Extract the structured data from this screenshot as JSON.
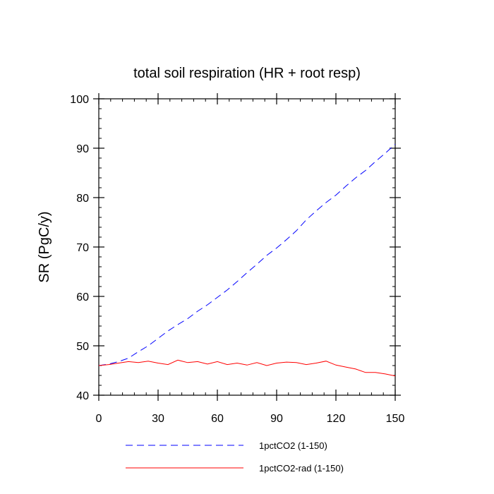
{
  "chart_data": {
    "type": "line",
    "title": "total soil respiration (HR + root resp)",
    "ylabel": "SR  (PgC/y)",
    "xlabel": "",
    "xlim": [
      0,
      150
    ],
    "ylim": [
      40,
      100
    ],
    "xticks": [
      0,
      30,
      60,
      90,
      120,
      150
    ],
    "xtick_labels": [
      "0",
      "30",
      "60",
      "90",
      "120",
      "150"
    ],
    "yticks": [
      40,
      50,
      60,
      70,
      80,
      90,
      100
    ],
    "ytick_labels": [
      "40",
      "50",
      "60",
      "70",
      "80",
      "90",
      "100"
    ],
    "grid": false,
    "legend_position": "bottom",
    "series": [
      {
        "name": "1pctCO2 (1-150)",
        "color": "#0000ff",
        "dash": "dashed",
        "x": [
          0,
          5,
          10,
          15,
          20,
          25,
          30,
          35,
          40,
          45,
          50,
          55,
          60,
          65,
          70,
          75,
          80,
          85,
          90,
          95,
          100,
          105,
          110,
          115,
          120,
          125,
          130,
          135,
          140,
          145,
          150
        ],
        "y": [
          46.0,
          46.3,
          46.8,
          47.5,
          48.8,
          50.0,
          51.5,
          53.0,
          54.3,
          55.5,
          57.0,
          58.3,
          59.8,
          61.3,
          63.0,
          64.8,
          66.5,
          68.3,
          69.8,
          71.5,
          73.3,
          75.5,
          77.3,
          79.0,
          80.5,
          82.3,
          84.0,
          85.5,
          87.3,
          89.0,
          90.8
        ]
      },
      {
        "name": "1pctCO2-rad (1-150)",
        "color": "#ff0000",
        "dash": "solid",
        "x": [
          0,
          5,
          10,
          15,
          20,
          25,
          30,
          35,
          40,
          45,
          50,
          55,
          60,
          65,
          70,
          75,
          80,
          85,
          90,
          95,
          100,
          105,
          110,
          115,
          120,
          125,
          130,
          135,
          140,
          145,
          150
        ],
        "y": [
          46.0,
          46.2,
          46.5,
          46.8,
          46.6,
          46.9,
          46.5,
          46.2,
          47.1,
          46.6,
          46.8,
          46.3,
          46.8,
          46.2,
          46.5,
          46.1,
          46.6,
          46.0,
          46.5,
          46.7,
          46.6,
          46.2,
          46.5,
          46.9,
          46.1,
          45.7,
          45.3,
          44.6,
          44.6,
          44.3,
          43.9
        ]
      }
    ]
  }
}
